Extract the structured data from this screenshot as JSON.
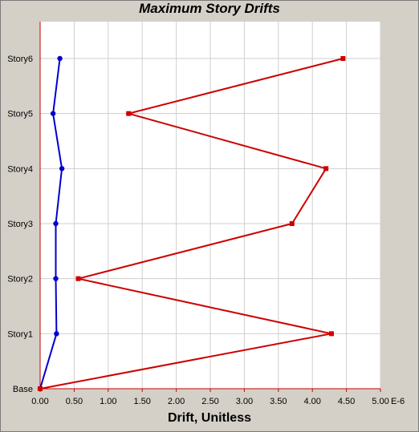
{
  "chart_data": {
    "type": "line",
    "title": "Maximum Story Drifts",
    "xlabel": "Drift, Unitless",
    "x_unit_suffix": "E-6",
    "xlim": [
      0,
      5.0
    ],
    "x_ticks": [
      "0.00",
      "0.50",
      "1.00",
      "1.50",
      "2.00",
      "2.50",
      "3.00",
      "3.50",
      "4.00",
      "4.50",
      "5.00"
    ],
    "categories": [
      "Base",
      "Story1",
      "Story2",
      "Story3",
      "Story4",
      "Story5",
      "Story6"
    ],
    "grid": true,
    "series": [
      {
        "color": "#0000cc",
        "marker": "circle",
        "values": [
          0.0,
          0.24,
          0.23,
          0.23,
          0.32,
          0.19,
          0.29
        ]
      },
      {
        "color": "#cc0000",
        "marker": "square",
        "values": [
          0.0,
          4.28,
          0.56,
          3.7,
          4.2,
          1.3,
          4.45
        ]
      }
    ]
  }
}
